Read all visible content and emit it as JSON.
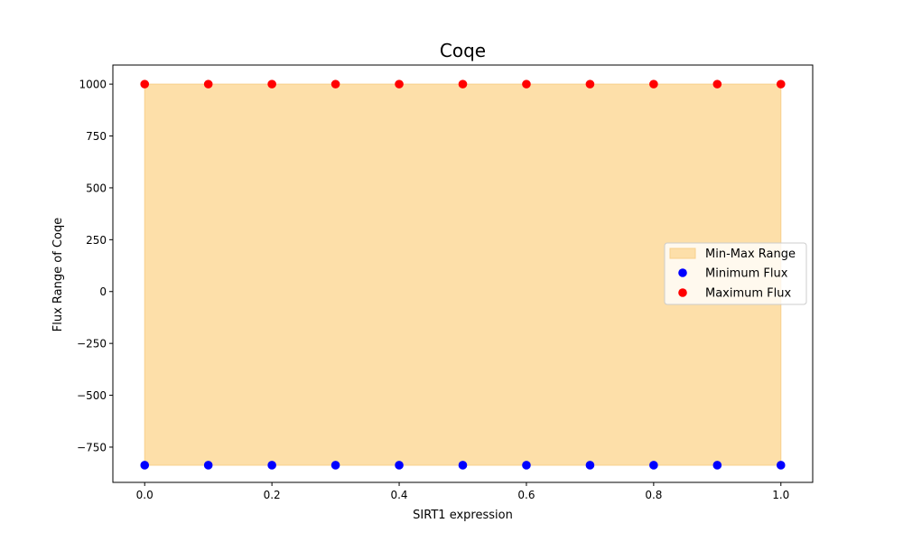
{
  "chart_data": {
    "type": "scatter",
    "title": "Coqe",
    "xlabel": "SIRT1 expression",
    "ylabel": "Flux Range of Coqe",
    "xlim": [
      -0.05,
      1.05
    ],
    "ylim": [
      -920,
      1092
    ],
    "x_ticks": [
      0.0,
      0.2,
      0.4,
      0.6,
      0.8,
      1.0
    ],
    "x_tick_labels": [
      "0.0",
      "0.2",
      "0.4",
      "0.6",
      "0.8",
      "1.0"
    ],
    "y_ticks": [
      -750,
      -500,
      -250,
      0,
      250,
      500,
      750,
      1000
    ],
    "y_tick_labels": [
      "−750",
      "−500",
      "−250",
      "0",
      "250",
      "500",
      "750",
      "1000"
    ],
    "grid": false,
    "legend_position": "center-right",
    "x": [
      0.0,
      0.1,
      0.2,
      0.3,
      0.4,
      0.5,
      0.6,
      0.7,
      0.8,
      0.9,
      1.0
    ],
    "range": {
      "name": "Min-Max Range",
      "color": "#fddfa9",
      "edge_color": "#f8d08c"
    },
    "series": [
      {
        "name": "Minimum Flux",
        "color": "#0000ff",
        "values": [
          -837,
          -837,
          -837,
          -837,
          -837,
          -837,
          -837,
          -837,
          -837,
          -837,
          -837
        ]
      },
      {
        "name": "Maximum Flux",
        "color": "#ff0000",
        "values": [
          1000,
          1000,
          1000,
          1000,
          1000,
          1000,
          1000,
          1000,
          1000,
          1000,
          1000
        ]
      }
    ]
  }
}
